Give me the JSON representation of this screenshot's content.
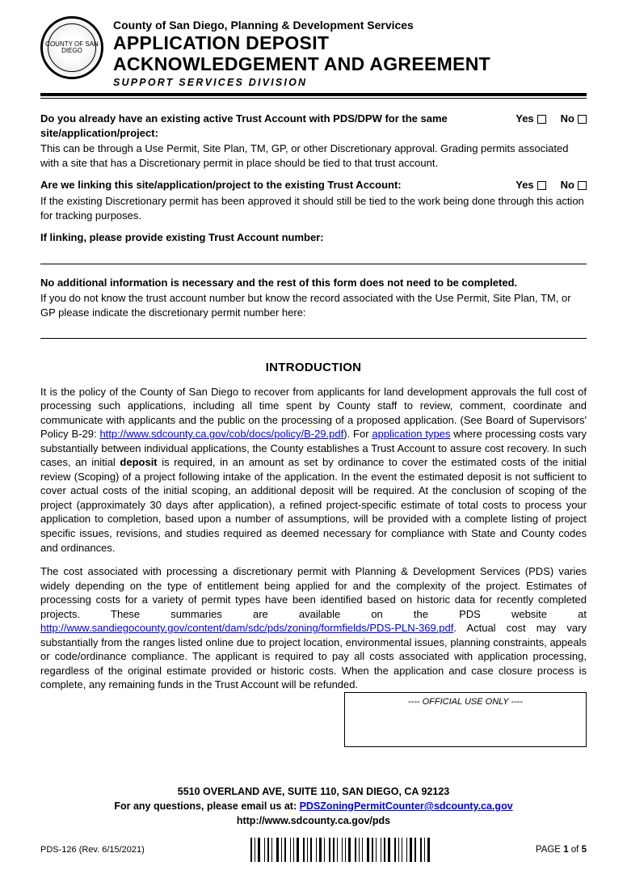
{
  "header": {
    "dept": "County of San Diego, Planning & Development Services",
    "title_line1": "APPLICATION DEPOSIT",
    "title_line2": "ACKNOWLEDGEMENT AND AGREEMENT",
    "division": "SUPPORT SERVICES  DIVISION",
    "seal_text": "COUNTY OF SAN DIEGO"
  },
  "q1": {
    "question": "Do you already have an existing active Trust Account with PDS/DPW for the same site/application/project:",
    "yes": "Yes",
    "no": "No",
    "explain": "This can be through a Use Permit, Site Plan, TM, GP, or other Discretionary approval. Grading permits associated with a site that has a Discretionary permit in place should be tied to that trust account."
  },
  "q2": {
    "question": "Are we linking this site/application/project to the existing Trust Account:",
    "yes": "Yes",
    "no": "No",
    "explain": "If the existing Discretionary permit has been approved it should still be tied to the work being done through this action for tracking purposes."
  },
  "q3": {
    "prompt": "If linking, please provide existing Trust Account number:"
  },
  "q4": {
    "bold": "No additional information is necessary and the rest of this form does not need to be completed.",
    "explain": "If you do not know the trust account number but know the record associated with the Use Permit,  Site Plan, TM, or GP please indicate the discretionary permit number here:"
  },
  "intro": {
    "heading": "INTRODUCTION",
    "p1_a": "It is the policy of the County of San Diego to recover from applicants for land development approvals the full cost of processing such applications, including all time spent by County staff to review, comment, coordinate and communicate with applicants and the public on the processing of a proposed application. (See Board of Supervisors' Policy B-29: ",
    "p1_link1_text": "http://www.sdcounty.ca.gov/cob/docs/policy/B-29.pdf",
    "p1_b": "). For ",
    "p1_link2_text": "application types",
    "p1_c": " where processing costs vary substantially between individual applications, the County establishes a Trust Account to assure cost recovery. In such cases, an initial ",
    "p1_deposit": "deposit",
    "p1_d": " is required, in an amount as set by ordinance to cover the estimated costs of the initial review (Scoping) of a project following intake of the application. In the event the estimated deposit is not sufficient to cover actual costs of the initial scoping, an additional deposit will be required. At the conclusion of scoping of the project (approximately 30 days after application), a refined project-specific estimate of total costs to process your application to completion, based upon a number of  assumptions,  will be provided with a complete listing of project specific issues, revisions, and studies required as deemed necessary for compliance with State and County codes and ordinances.",
    "p2_a": "The cost associated with processing a discretionary permit  with  Planning  &  Development  Services (PDS) varies widely depending on the type of entitlement being applied for and the complexity of the project. Estimates of processing costs for a variety of permit types have been identified based on historic data for recently completed projects. These summaries are available on the PDS website at ",
    "p2_link_text": "http://www.sandiegocounty.gov/content/dam/sdc/pds/zoning/formfields/PDS-PLN-369.pdf",
    "p2_b": ".  Actual cost may vary substantially from the ranges listed online due to project location, environmental issues, planning constraints, appeals or code/ordinance compliance.  The applicant  is  required to pay all costs associated with application processing, regardless of the original estimate provided  or  historic costs. When the application and  case closure process is complete, any remaining funds in the  Trust Account will be refunded."
  },
  "official": {
    "label": "---- OFFICIAL USE ONLY ----"
  },
  "footer": {
    "address": "5510 OVERLAND AVE, SUITE 110, SAN DIEGO, CA  92123",
    "email_prefix": "For any questions, please email us at: ",
    "email_link": "PDSZoningPermitCounter@sdcounty.ca.gov",
    "url": "http://www.sdcounty.ca.gov/pds",
    "form_id": "PDS-126  (Rev. 6/15/2021)",
    "page_label": "PAGE ",
    "page_num": "1",
    "page_of": " of ",
    "page_total": "5"
  },
  "colors": {
    "text": "#000000",
    "link": "#0000ee",
    "background": "#ffffff"
  }
}
